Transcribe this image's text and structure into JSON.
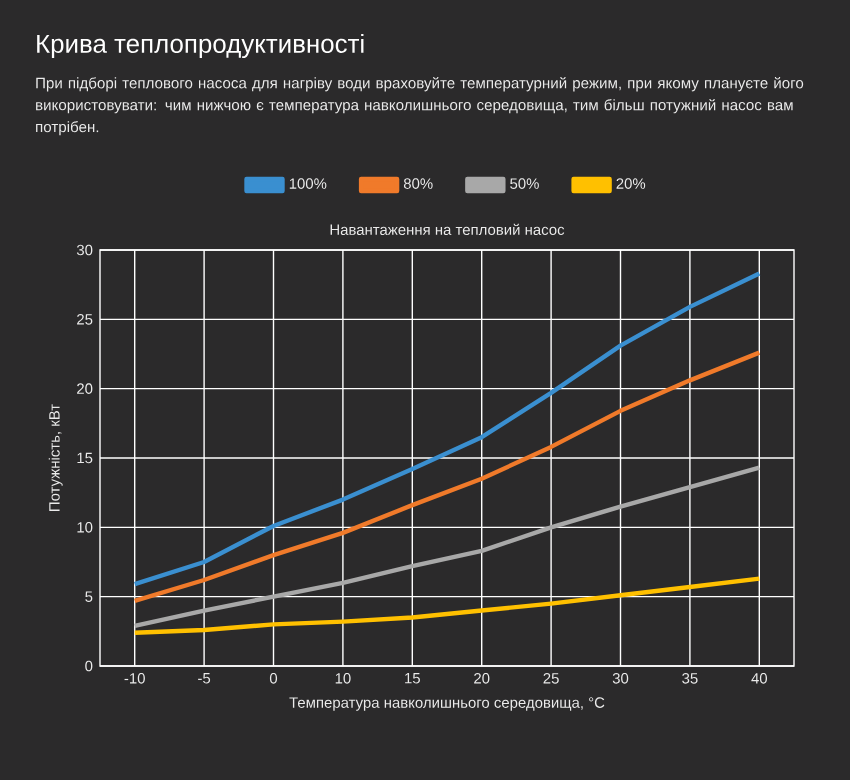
{
  "chart_data": {
    "type": "line",
    "title": "Крива теплопродуктивності",
    "subtitle": "При підборі теплового насоса для нагріву води враховуйте температурний режим, при якому плануєте його використовувати: чим нижчою є температура навколишнього середовища, тим більш потужний насос вам потрібен.",
    "annotations": [
      "Навантаження на тепловий насос"
    ],
    "xlabel": "Температура навколишнього середовища, °C",
    "ylabel": "Потужність, кВт",
    "categories": [
      "-10",
      "-5",
      "0",
      "10",
      "15",
      "20",
      "25",
      "30",
      "35",
      "40"
    ],
    "series": [
      {
        "name": "100%",
        "color": "#3a8fd0",
        "values": [
          5.9,
          7.5,
          10.1,
          12.0,
          14.2,
          16.5,
          19.7,
          23.1,
          25.9,
          28.3
        ]
      },
      {
        "name": "80%",
        "color": "#f07a2a",
        "values": [
          4.7,
          6.2,
          8.0,
          9.6,
          11.6,
          13.5,
          15.8,
          18.4,
          20.6,
          22.6
        ]
      },
      {
        "name": "50%",
        "color": "#a8a8a8",
        "values": [
          2.9,
          4.0,
          5.0,
          6.0,
          7.2,
          8.3,
          10.0,
          11.5,
          12.9,
          14.3
        ]
      },
      {
        "name": "20%",
        "color": "#ffc000",
        "values": [
          2.4,
          2.6,
          3.0,
          3.2,
          3.5,
          4.0,
          4.5,
          5.1,
          5.7,
          6.3
        ]
      }
    ],
    "ylim": [
      0,
      30
    ],
    "yticks": [
      0,
      5,
      10,
      15,
      20,
      25,
      30
    ],
    "grid": true,
    "legend": "top",
    "marker": "none",
    "line_style": "solid"
  }
}
